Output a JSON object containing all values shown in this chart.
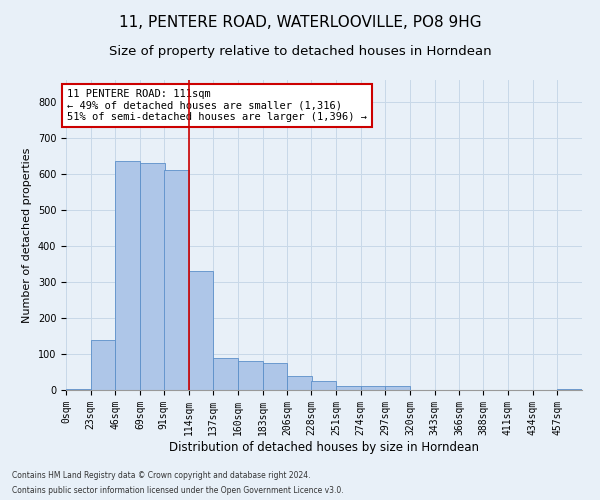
{
  "title_line1": "11, PENTERE ROAD, WATERLOOVILLE, PO8 9HG",
  "title_line2": "Size of property relative to detached houses in Horndean",
  "xlabel": "Distribution of detached houses by size in Horndean",
  "ylabel": "Number of detached properties",
  "footnote1": "Contains HM Land Registry data © Crown copyright and database right 2024.",
  "footnote2": "Contains public sector information licensed under the Open Government Licence v3.0.",
  "bin_labels": [
    "0sqm",
    "23sqm",
    "46sqm",
    "69sqm",
    "91sqm",
    "114sqm",
    "137sqm",
    "160sqm",
    "183sqm",
    "206sqm",
    "228sqm",
    "251sqm",
    "274sqm",
    "297sqm",
    "320sqm",
    "343sqm",
    "366sqm",
    "388sqm",
    "411sqm",
    "434sqm",
    "457sqm"
  ],
  "bar_values": [
    2,
    140,
    635,
    630,
    610,
    330,
    90,
    80,
    75,
    40,
    25,
    10,
    10,
    10,
    0,
    0,
    0,
    0,
    0,
    0,
    2
  ],
  "bar_left_edges": [
    0,
    23,
    46,
    69,
    91,
    114,
    137,
    160,
    183,
    206,
    228,
    251,
    274,
    297,
    320,
    343,
    366,
    388,
    411,
    434,
    457
  ],
  "bin_width": 23,
  "bar_color": "#aec6e8",
  "bar_edge_color": "#5b8fc9",
  "vline_color": "#cc0000",
  "vline_x": 114,
  "annotation_text": "11 PENTERE ROAD: 111sqm\n← 49% of detached houses are smaller (1,316)\n51% of semi-detached houses are larger (1,396) →",
  "annotation_box_color": "#ffffff",
  "annotation_box_edge": "#cc0000",
  "ylim": [
    0,
    860
  ],
  "yticks": [
    0,
    100,
    200,
    300,
    400,
    500,
    600,
    700,
    800
  ],
  "grid_color": "#c8d8e8",
  "background_color": "#e8f0f8",
  "title_fontsize": 11,
  "subtitle_fontsize": 9.5,
  "ylabel_fontsize": 8,
  "xlabel_fontsize": 8.5,
  "tick_fontsize": 7,
  "annotation_fontsize": 7.5,
  "footnote_fontsize": 5.5
}
